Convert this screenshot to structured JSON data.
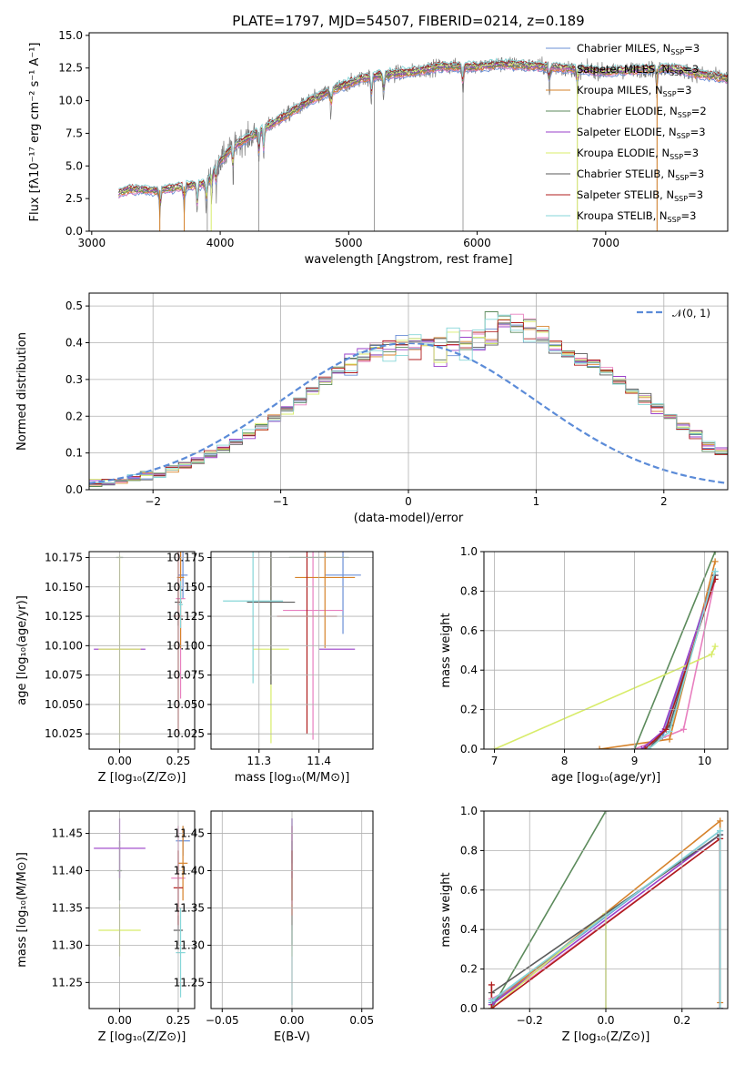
{
  "figure_title": "PLATE=1797, MJD=54507, FIBERID=0214, z=0.189",
  "model_colors": [
    "#6a8fd6",
    "#e87fbf",
    "#d6822a",
    "#5b8a5b",
    "#9a3fc8",
    "#d8ec6a",
    "#5a5a5a",
    "#b01c1c",
    "#86d6d8"
  ],
  "chart_data": [
    {
      "id": "spectrum",
      "type": "line",
      "title": "PLATE=1797, MJD=54507, FIBERID=0214, z=0.189",
      "xlabel": "wavelength [Angstrom, rest frame]",
      "ylabel": "Flux [fλ10⁻¹⁷ erg cm⁻² s⁻¹ A⁻¹]",
      "xlim": [
        2980,
        7950
      ],
      "ylim": [
        0,
        15.2
      ],
      "xticks": [
        3000,
        4000,
        5000,
        6000,
        7000
      ],
      "yticks": [
        "0.0",
        "2.5",
        "5.0",
        "7.5",
        "10.0",
        "12.5",
        "15.0"
      ],
      "grid": false,
      "legend_position": "top-right",
      "x_range": [
        3210,
        7950
      ],
      "continuum": [
        [
          3210,
          2.9
        ],
        [
          3300,
          3.2
        ],
        [
          3500,
          3.1
        ],
        [
          3700,
          3.4
        ],
        [
          3900,
          3.7
        ],
        [
          3950,
          4.8
        ],
        [
          4100,
          6.5
        ],
        [
          4300,
          7.6
        ],
        [
          4500,
          8.8
        ],
        [
          4700,
          10.0
        ],
        [
          4900,
          10.9
        ],
        [
          5100,
          11.7
        ],
        [
          5300,
          12.0
        ],
        [
          5500,
          12.2
        ],
        [
          5700,
          12.6
        ],
        [
          6000,
          12.6
        ],
        [
          6200,
          12.8
        ],
        [
          6500,
          12.6
        ],
        [
          6800,
          12.4
        ],
        [
          7000,
          12.2
        ],
        [
          7300,
          12.4
        ],
        [
          7500,
          12.5
        ],
        [
          7700,
          12.1
        ],
        [
          7950,
          11.7
        ]
      ],
      "absorption_lines": [
        3530,
        3720,
        3820,
        3890,
        3935,
        3970,
        4101,
        4300,
        4340,
        4861,
        5175,
        5270,
        5890,
        6563,
        6780,
        7400
      ],
      "series": [
        {
          "name": "Chabrier MILES, N",
          "sub": "SSP",
          "suffix": "=3",
          "color": "#6a8fd6"
        },
        {
          "name": "Salpeter MILES, N",
          "sub": "SSP",
          "suffix": "=3",
          "color": "#e87fbf"
        },
        {
          "name": "Kroupa MILES, N",
          "sub": "SSP",
          "suffix": "=3",
          "color": "#d6822a"
        },
        {
          "name": "Chabrier ELODIE, N",
          "sub": "SSP",
          "suffix": "=2",
          "color": "#5b8a5b"
        },
        {
          "name": "Salpeter ELODIE, N",
          "sub": "SSP",
          "suffix": "=3",
          "color": "#9a3fc8"
        },
        {
          "name": "Kroupa ELODIE, N",
          "sub": "SSP",
          "suffix": "=3",
          "color": "#d8ec6a"
        },
        {
          "name": "Chabrier STELIB, N",
          "sub": "SSP",
          "suffix": "=3",
          "color": "#5a5a5a"
        },
        {
          "name": "Salpeter STELIB, N",
          "sub": "SSP",
          "suffix": "=3",
          "color": "#b01c1c"
        },
        {
          "name": "Kroupa STELIB, N",
          "sub": "SSP",
          "suffix": "=3",
          "color": "#86d6d8"
        }
      ]
    },
    {
      "id": "residuals",
      "type": "histogram",
      "xlabel": "(data-model)/error",
      "ylabel": "Normed distribution",
      "xlim": [
        -2.5,
        2.5
      ],
      "ylim": [
        0,
        0.535
      ],
      "xticks": [
        "−2",
        "−1",
        "0",
        "1",
        "2"
      ],
      "yticks": [
        "0.0",
        "0.1",
        "0.2",
        "0.3",
        "0.4",
        "0.5"
      ],
      "grid": true,
      "legend_position": "top-right",
      "reference_curve": {
        "name": "𝒩(0, 1)",
        "color": "#5b8bd8",
        "style": "dashed"
      },
      "bins_from": -2.5,
      "bin_width": 0.1,
      "base_heights": [
        0.018,
        0.02,
        0.025,
        0.03,
        0.038,
        0.047,
        0.057,
        0.067,
        0.08,
        0.095,
        0.11,
        0.13,
        0.15,
        0.172,
        0.195,
        0.22,
        0.245,
        0.27,
        0.3,
        0.32,
        0.34,
        0.36,
        0.375,
        0.39,
        0.4,
        0.395,
        0.4,
        0.392,
        0.402,
        0.39,
        0.41,
        0.43,
        0.45,
        0.44,
        0.43,
        0.42,
        0.39,
        0.37,
        0.35,
        0.34,
        0.32,
        0.3,
        0.27,
        0.245,
        0.22,
        0.2,
        0.17,
        0.15,
        0.12,
        0.1,
        0.08,
        0.07,
        0.06,
        0.05,
        0.04,
        0.034,
        0.026,
        0.022,
        0.018,
        0.015
      ]
    },
    {
      "id": "age-vs-Z",
      "type": "errorbar",
      "xlabel": "Z [log₁₀(Z/Z⊙)]",
      "ylabel": "age  [log₁₀(age/yr)]",
      "xlim": [
        -0.13,
        0.32
      ],
      "ylim": [
        10.012,
        10.18
      ],
      "xticks": [
        "0.00",
        "0.25"
      ],
      "xtick_values": [
        0,
        0.25
      ],
      "yticks": [
        "10.025",
        "10.050",
        "10.075",
        "10.100",
        "10.125",
        "10.150",
        "10.175"
      ],
      "ytick_values": [
        10.025,
        10.05,
        10.075,
        10.1,
        10.125,
        10.15,
        10.175
      ],
      "grid": true,
      "points": [
        {
          "x": 0.27,
          "xe": 0.02,
          "y": 10.16,
          "ye": 0.02,
          "color": "#6a8fd6"
        },
        {
          "x": 0.26,
          "xe": 0.02,
          "y": 10.14,
          "ye": 0.085,
          "color": "#e87fbf"
        },
        {
          "x": 0.26,
          "xe": 0.015,
          "y": 10.158,
          "ye": 0.06,
          "color": "#d6822a"
        },
        {
          "x": 0.0,
          "xe": 0.015,
          "y": 10.175,
          "ye": 0.0,
          "color": "#5b8a5b"
        },
        {
          "x": 0.0,
          "xe": 0.11,
          "y": 10.097,
          "ye": 0.0,
          "color": "#9a3fc8"
        },
        {
          "x": 0.0,
          "xe": 0.09,
          "y": 10.097,
          "ye": 0.08,
          "color": "#d8ec6a"
        },
        {
          "x": 0.25,
          "xe": 0.015,
          "y": 10.137,
          "ye": 0.02,
          "color": "#5a5a5a"
        },
        {
          "x": 0.25,
          "xe": 0.02,
          "y": 10.125,
          "ye": 0.1,
          "color": "#b01c1c"
        },
        {
          "x": 0.26,
          "xe": 0.01,
          "y": 10.135,
          "ye": 0.02,
          "color": "#86d6d8"
        }
      ]
    },
    {
      "id": "age-vs-mass",
      "type": "errorbar",
      "xlabel": "mass [log₁₀(M/M⊙)]",
      "ylabel": "",
      "xlim": [
        11.22,
        11.49
      ],
      "ylim": [
        10.012,
        10.18
      ],
      "xticks": [
        "11.3",
        "11.4"
      ],
      "xtick_values": [
        11.3,
        11.4
      ],
      "yticks": [
        "10.025",
        "10.050",
        "10.075",
        "10.100",
        "10.125",
        "10.150",
        "10.175"
      ],
      "ytick_values": [
        10.025,
        10.05,
        10.075,
        10.1,
        10.125,
        10.15,
        10.175
      ],
      "grid": true,
      "points": [
        {
          "x": 11.44,
          "xe": 0.03,
          "y": 10.16,
          "ye": 0.05,
          "color": "#6a8fd6"
        },
        {
          "x": 11.39,
          "xe": 0.05,
          "y": 10.13,
          "ye": 0.11,
          "color": "#e87fbf"
        },
        {
          "x": 11.41,
          "xe": 0.05,
          "y": 10.158,
          "ye": 0.06,
          "color": "#d6822a"
        },
        {
          "x": 11.4,
          "xe": 0.05,
          "y": 10.175,
          "ye": 0.0,
          "color": "#5b8a5b"
        },
        {
          "x": 11.43,
          "xe": 0.03,
          "y": 10.097,
          "ye": 0.0,
          "color": "#9a3fc8"
        },
        {
          "x": 11.32,
          "xe": 0.03,
          "y": 10.097,
          "ye": 0.08,
          "color": "#d8ec6a"
        },
        {
          "x": 11.32,
          "xe": 0.04,
          "y": 10.137,
          "ye": 0.07,
          "color": "#5a5a5a"
        },
        {
          "x": 11.38,
          "xe": 0.05,
          "y": 10.125,
          "ye": 0.1,
          "color": "#b01c1c"
        },
        {
          "x": 11.29,
          "xe": 0.05,
          "y": 10.138,
          "ye": 0.07,
          "color": "#86d6d8"
        }
      ]
    },
    {
      "id": "massweight-vs-age",
      "type": "line",
      "xlabel": "age  [log₁₀(age/yr)]",
      "ylabel": "mass weight",
      "xlim": [
        6.85,
        10.33
      ],
      "ylim": [
        0,
        1
      ],
      "xticks": [
        "7",
        "8",
        "9",
        "10"
      ],
      "xtick_values": [
        7,
        8,
        9,
        10
      ],
      "yticks": [
        "0.0",
        "0.2",
        "0.4",
        "0.6",
        "0.8",
        "1.0"
      ],
      "ytick_values": [
        0,
        0.2,
        0.4,
        0.6,
        0.8,
        1.0
      ],
      "grid": true,
      "series": [
        {
          "color": "#6a8fd6",
          "points": [
            [
              9.1,
              0.0
            ],
            [
              9.4,
              0.06
            ],
            [
              10.15,
              0.9
            ]
          ]
        },
        {
          "color": "#e87fbf",
          "points": [
            [
              9.0,
              0.0
            ],
            [
              9.7,
              0.1
            ],
            [
              10.15,
              0.86
            ]
          ]
        },
        {
          "color": "#d6822a",
          "points": [
            [
              8.5,
              0.0
            ],
            [
              9.5,
              0.05
            ],
            [
              10.15,
              0.95
            ]
          ]
        },
        {
          "color": "#5b8a5b",
          "points": [
            [
              9.0,
              0.0
            ],
            [
              10.15,
              1.0
            ]
          ]
        },
        {
          "color": "#9a3fc8",
          "points": [
            [
              9.1,
              0.0
            ],
            [
              9.4,
              0.09
            ],
            [
              10.15,
              0.88
            ]
          ]
        },
        {
          "color": "#d8ec6a",
          "points": [
            [
              7.0,
              0.0
            ],
            [
              10.1,
              0.48
            ],
            [
              10.15,
              0.52
            ]
          ]
        },
        {
          "color": "#5a5a5a",
          "points": [
            [
              9.2,
              0.0
            ],
            [
              9.5,
              0.12
            ],
            [
              10.15,
              0.88
            ]
          ]
        },
        {
          "color": "#b01c1c",
          "points": [
            [
              9.15,
              0.0
            ],
            [
              9.45,
              0.1
            ],
            [
              10.15,
              0.86
            ]
          ]
        },
        {
          "color": "#86d6d8",
          "points": [
            [
              9.2,
              0.0
            ],
            [
              9.5,
              0.09
            ],
            [
              10.15,
              0.9
            ]
          ]
        }
      ]
    },
    {
      "id": "mass-vs-Z",
      "type": "errorbar",
      "xlabel": "Z [log₁₀(Z/Z⊙)]",
      "ylabel": "mass [log₁₀(M/M⊙)]",
      "xlim": [
        -0.13,
        0.32
      ],
      "ylim": [
        11.215,
        11.48
      ],
      "xticks": [
        "0.00",
        "0.25"
      ],
      "xtick_values": [
        0,
        0.25
      ],
      "yticks": [
        "11.25",
        "11.30",
        "11.35",
        "11.40",
        "11.45"
      ],
      "ytick_values": [
        11.25,
        11.3,
        11.35,
        11.4,
        11.45
      ],
      "grid": true,
      "points": [
        {
          "x": 0.27,
          "xe": 0.03,
          "y": 11.44,
          "ye": 0.02,
          "color": "#6a8fd6"
        },
        {
          "x": 0.25,
          "xe": 0.03,
          "y": 11.39,
          "ye": 0.07,
          "color": "#e87fbf"
        },
        {
          "x": 0.27,
          "xe": 0.02,
          "y": 11.41,
          "ye": 0.05,
          "color": "#d6822a"
        },
        {
          "x": 0.0,
          "xe": 0.01,
          "y": 11.4,
          "ye": 0.04,
          "color": "#5b8a5b"
        },
        {
          "x": 0.0,
          "xe": 0.11,
          "y": 11.43,
          "ye": 0.04,
          "color": "#9a3fc8"
        },
        {
          "x": 0.0,
          "xe": 0.09,
          "y": 11.32,
          "ye": 0.035,
          "color": "#d8ec6a"
        },
        {
          "x": 0.25,
          "xe": 0.02,
          "y": 11.32,
          "ye": 0.02,
          "color": "#5a5a5a"
        },
        {
          "x": 0.25,
          "xe": 0.02,
          "y": 11.377,
          "ye": 0.05,
          "color": "#b01c1c"
        },
        {
          "x": 0.26,
          "xe": 0.02,
          "y": 11.29,
          "ye": 0.06,
          "color": "#86d6d8"
        }
      ]
    },
    {
      "id": "mass-vs-EBV",
      "type": "errorbar",
      "xlabel": "E(B-V)",
      "ylabel": "",
      "xlim": [
        -0.058,
        0.058
      ],
      "ylim": [
        11.215,
        11.48
      ],
      "xticks": [
        "−0.05",
        "0.00",
        "0.05"
      ],
      "xtick_values": [
        -0.05,
        0,
        0.05
      ],
      "yticks": [
        "11.25",
        "11.30",
        "11.35",
        "11.40",
        "11.45"
      ],
      "ytick_values": [
        11.25,
        11.3,
        11.35,
        11.4,
        11.45
      ],
      "grid": true,
      "points": [
        {
          "x": 0.0,
          "xe": 0.0,
          "y": 11.44,
          "ye": 0.03,
          "color": "#6a8fd6"
        },
        {
          "x": 0.0,
          "xe": 0.0,
          "y": 11.39,
          "ye": 0.07,
          "color": "#e87fbf"
        },
        {
          "x": 0.0,
          "xe": 0.0,
          "y": 11.41,
          "ye": 0.05,
          "color": "#d6822a"
        },
        {
          "x": 0.0,
          "xe": 0.0,
          "y": 11.4,
          "ye": 0.04,
          "color": "#5b8a5b"
        },
        {
          "x": 0.0,
          "xe": 0.0,
          "y": 11.43,
          "ye": 0.04,
          "color": "#9a3fc8"
        },
        {
          "x": 0.0,
          "xe": 0.0,
          "y": 11.32,
          "ye": 0.035,
          "color": "#d8ec6a"
        },
        {
          "x": 0.0,
          "xe": 0.0,
          "y": 11.32,
          "ye": 0.02,
          "color": "#5a5a5a"
        },
        {
          "x": 0.0,
          "xe": 0.0,
          "y": 11.377,
          "ye": 0.05,
          "color": "#b01c1c"
        },
        {
          "x": 0.0,
          "xe": 0.0,
          "y": 11.28,
          "ye": 0.06,
          "color": "#86d6d8"
        }
      ]
    },
    {
      "id": "massweight-vs-Z",
      "type": "line",
      "xlabel": "Z [log₁₀(Z/Z⊙)]",
      "ylabel": "mass weight",
      "xlim": [
        -0.32,
        0.32
      ],
      "ylim": [
        0,
        1
      ],
      "xticks": [
        "−0.2",
        "0.0",
        "0.2"
      ],
      "xtick_values": [
        -0.2,
        0,
        0.2
      ],
      "yticks": [
        "0.0",
        "0.2",
        "0.4",
        "0.6",
        "0.8",
        "1.0"
      ],
      "ytick_values": [
        0,
        0.2,
        0.4,
        0.6,
        0.8,
        1.0
      ],
      "grid": true,
      "series": [
        {
          "color": "#6a8fd6",
          "points": [
            [
              -0.3,
              0.03
            ],
            [
              0.3,
              0.9
            ],
            [
              0.3,
              0.0
            ]
          ]
        },
        {
          "color": "#e87fbf",
          "points": [
            [
              -0.3,
              0.05
            ],
            [
              -0.2,
              0.15
            ],
            [
              0.3,
              0.86
            ],
            [
              0.3,
              0.0
            ]
          ]
        },
        {
          "color": "#d6822a",
          "points": [
            [
              -0.3,
              0.02
            ],
            [
              0.3,
              0.95
            ],
            [
              0.3,
              0.03
            ]
          ]
        },
        {
          "color": "#5b8a5b",
          "points": [
            [
              -0.3,
              0.0
            ],
            [
              0.0,
              1.0
            ]
          ]
        },
        {
          "color": "#9a3fc8",
          "points": [
            [
              -0.3,
              0.02
            ],
            [
              0.3,
              0.88
            ],
            [
              0.3,
              0.0
            ]
          ]
        },
        {
          "color": "#d8ec6a",
          "points": [
            [
              -0.3,
              0.0
            ],
            [
              0.0,
              0.48
            ],
            [
              0.0,
              0.0
            ]
          ]
        },
        {
          "color": "#5a5a5a",
          "points": [
            [
              -0.3,
              0.08
            ],
            [
              0.3,
              0.88
            ],
            [
              0.3,
              0.0
            ]
          ]
        },
        {
          "color": "#b01c1c",
          "points": [
            [
              -0.3,
              0.12
            ],
            [
              -0.3,
              0.0
            ],
            [
              0.3,
              0.86
            ],
            [
              0.3,
              0.0
            ]
          ]
        },
        {
          "color": "#86d6d8",
          "points": [
            [
              -0.3,
              0.04
            ],
            [
              0.3,
              0.9
            ],
            [
              0.3,
              0.0
            ]
          ]
        }
      ]
    }
  ]
}
